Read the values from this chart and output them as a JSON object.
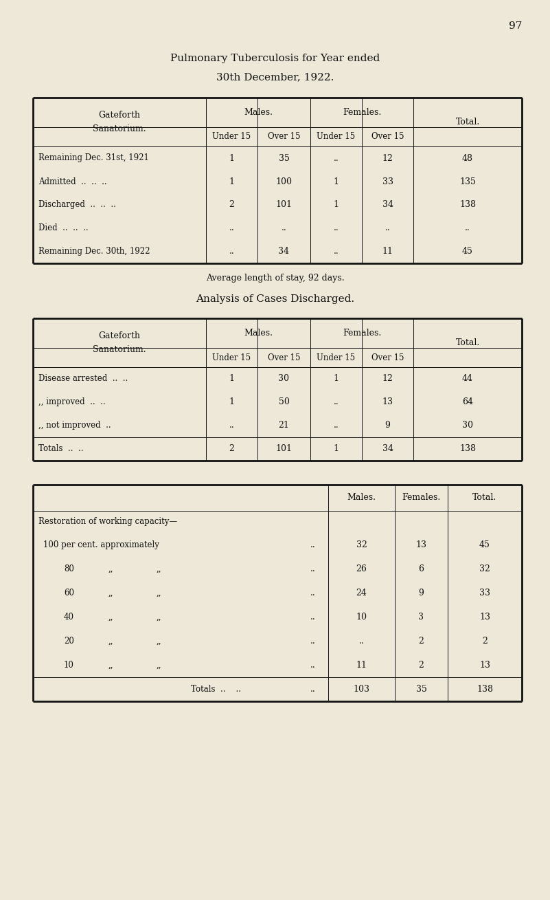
{
  "bg_color": "#ede8d8",
  "text_color": "#111111",
  "page_number": "97",
  "title_line1": "Pulmonary Tuberculosis for Year ended",
  "title_line2": "30th December, 1922.",
  "avg_stay_text": "Average length of stay, 92 days.",
  "table2_title": "Analysis of Cases Discharged.",
  "t1_rows": [
    [
      "Remaining Dec. 31st, 1921",
      "1",
      "35",
      "..",
      "12",
      "48"
    ],
    [
      "Admitted  ..  ..  ..",
      "1",
      "100",
      "1",
      "33",
      "135"
    ],
    [
      "Discharged  ..  ..  ..",
      "2",
      "101",
      "1",
      "34",
      "138"
    ],
    [
      "Died  ..  ..  ..",
      "..",
      "..",
      "..",
      "..",
      ".."
    ],
    [
      "Remaining Dec. 30th, 1922",
      "..",
      "34",
      "..",
      "11",
      "45"
    ]
  ],
  "t2_rows": [
    [
      "Disease arrested  ..  ..",
      "1",
      "30",
      "1",
      "12",
      "44"
    ],
    [
      ",, improved  ..  ..",
      "1",
      "50",
      "..",
      "13",
      "64"
    ],
    [
      ",, not improved  ..",
      "..",
      "21",
      "..",
      "9",
      "30"
    ],
    [
      "Totals  ..  ..",
      "2",
      "101",
      "1",
      "34",
      "138"
    ]
  ],
  "t3_label": "Restoration of working capacity—",
  "t3_pct_labels": [
    "100 per cent. approximately",
    "80",
    "60",
    "40",
    "20",
    "10"
  ],
  "t3_rows": [
    [
      "32",
      "13",
      "45"
    ],
    [
      "26",
      "6",
      "32"
    ],
    [
      "24",
      "9",
      "33"
    ],
    [
      "10",
      "3",
      "13"
    ],
    [
      "..",
      "2",
      "2"
    ],
    [
      "11",
      "2",
      "13"
    ],
    [
      "103",
      "35",
      "138"
    ]
  ]
}
